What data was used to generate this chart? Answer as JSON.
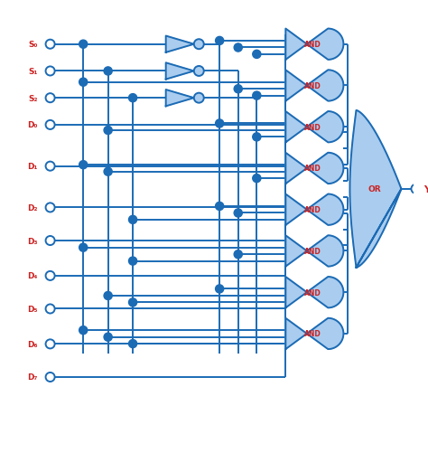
{
  "bg_color": "#ffffff",
  "line_color": "#1B6BB5",
  "label_color_red": "#CC2222",
  "gate_fill": "#AACCEE",
  "gate_edge": "#1B6BB5",
  "select_labels": [
    "S₀",
    "S₁",
    "S₂"
  ],
  "data_labels": [
    "D₀",
    "D₁",
    "D₂",
    "D₃",
    "D₄",
    "D₅",
    "D₆",
    "D₇"
  ],
  "output_label": "Y",
  "and_label": "AND",
  "or_label": "OR",
  "figsize": [
    4.74,
    5.02
  ],
  "dpi": 100,
  "lw": 1.4
}
